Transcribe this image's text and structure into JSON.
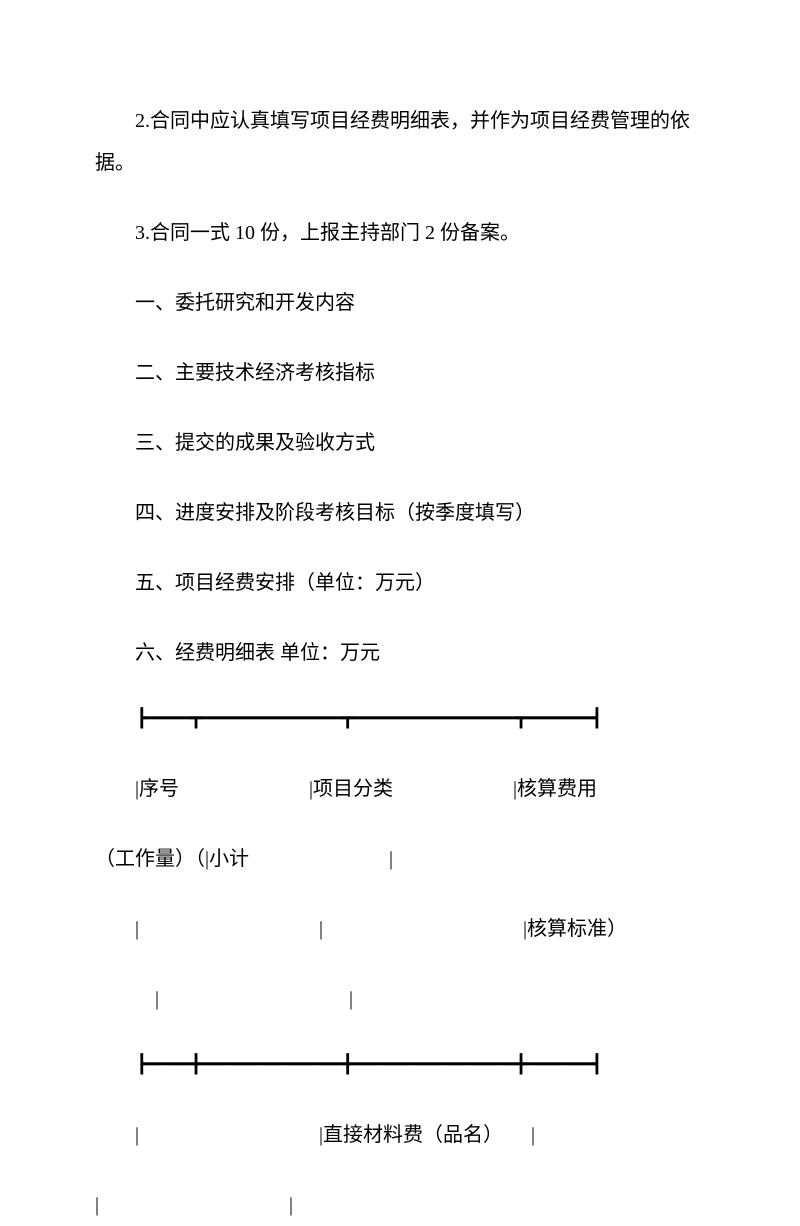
{
  "paragraphs": {
    "p1": "2.合同中应认真填写项目经费明细表，并作为项目经费管理的依据。",
    "p2": "3.合同一式 10 份，上报主持部门 2 份备案。"
  },
  "sections": {
    "s1": "一、委托研究和开发内容",
    "s2": "二、主要技术经济考核指标",
    "s3": "三、提交的成果及验收方式",
    "s4": "四、进度安排及阶段考核目标（按季度填写）",
    "s5": "五、项目经费安排（单位：万元）",
    "s6": "六、经费明细表 单位：万元"
  },
  "table": {
    "divider1": "┣━━━━┳━━━━━━━━━━━━━┳━━━━━━━━━━━━━━━┳━━━━━━┫",
    "row1a": "|序号",
    "row1b": "|项目分类",
    "row1c": "|核算费用",
    "row1d": "（工作量）（|小计",
    "row1e": "|",
    "row2a": "|",
    "row2b": "|",
    "row2c": "|核算标准）",
    "row2d": "|",
    "row2e": "|",
    "divider2": "┣━━━━╋━━━━━━━━━━━━━╋━━━━━━━━━━━━━━━╋━━━━━━┫",
    "row3a": "|",
    "row3b": "|直接材料费（品名）",
    "row3c": "|",
    "row3d": "|",
    "row3e": "|"
  }
}
